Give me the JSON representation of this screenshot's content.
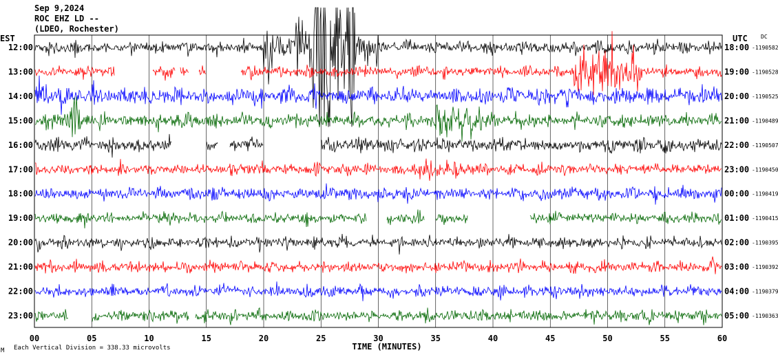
{
  "header": {
    "date": "Sep 9,2024",
    "station": "ROC EHZ LD --",
    "network": "(LDEO, Rochester)"
  },
  "chart_data": {
    "type": "line",
    "left_axis_label": "EST",
    "right_axis_label": "UTC",
    "dc_label": "DC",
    "xlabel": "TIME (MINUTES)",
    "x_ticks": [
      "00",
      "05",
      "10",
      "15",
      "20",
      "25",
      "30",
      "35",
      "40",
      "45",
      "50",
      "55",
      "60"
    ],
    "xlim": [
      0,
      60
    ],
    "grid": true,
    "footer_note": "Each Vertical Division = 338.33 microvolts",
    "corner_mark": "M",
    "trace_colors": [
      "#000000",
      "#ff0000",
      "#0000ff",
      "#006600"
    ],
    "series": [
      {
        "est": "12:00",
        "utc": "18:00",
        "dc": "-1190582",
        "color": "#000000",
        "amp": 1.0,
        "gaps": [],
        "bursts": [
          [
            20,
            30,
            3.4
          ],
          [
            24,
            28,
            4.5
          ]
        ]
      },
      {
        "est": "13:00",
        "utc": "19:00",
        "dc": "-1190528",
        "color": "#ff0000",
        "amp": 0.9,
        "gaps": [
          [
            7,
            10.3
          ],
          [
            12.3,
            12.7
          ],
          [
            13.5,
            14.3
          ],
          [
            15,
            18
          ]
        ],
        "bursts": [
          [
            47,
            53,
            4.5
          ]
        ]
      },
      {
        "est": "14:00",
        "utc": "20:00",
        "dc": "-1190525",
        "color": "#0000ff",
        "amp": 1.4,
        "gaps": [],
        "bursts": [
          [
            0,
            3,
            1.6
          ],
          [
            57,
            60,
            1.4
          ]
        ]
      },
      {
        "est": "15:00",
        "utc": "21:00",
        "dc": "-1190489",
        "color": "#006600",
        "amp": 1.1,
        "gaps": [],
        "bursts": [
          [
            2,
            4,
            2.2
          ],
          [
            35,
            39,
            2.6
          ]
        ]
      },
      {
        "est": "16:00",
        "utc": "22:00",
        "dc": "-1190507",
        "color": "#000000",
        "amp": 1.1,
        "gaps": [
          [
            12,
            15
          ],
          [
            16,
            17
          ],
          [
            20,
            25
          ]
        ],
        "bursts": []
      },
      {
        "est": "17:00",
        "utc": "23:00",
        "dc": "-1190450",
        "color": "#ff0000",
        "amp": 0.9,
        "gaps": [],
        "bursts": [
          [
            33,
            37,
            2.0
          ]
        ]
      },
      {
        "est": "18:00",
        "utc": "00:00",
        "dc": "-1190419",
        "color": "#0000ff",
        "amp": 1.0,
        "gaps": [],
        "bursts": []
      },
      {
        "est": "19:00",
        "utc": "01:00",
        "dc": "-1190415",
        "color": "#006600",
        "amp": 0.9,
        "gaps": [
          [
            29,
            30.7
          ],
          [
            34,
            35
          ],
          [
            37.8,
            43.2
          ]
        ],
        "bursts": []
      },
      {
        "est": "20:00",
        "utc": "02:00",
        "dc": "-1190395",
        "color": "#000000",
        "amp": 0.9,
        "gaps": [],
        "bursts": []
      },
      {
        "est": "21:00",
        "utc": "03:00",
        "dc": "-1190392",
        "color": "#ff0000",
        "amp": 0.9,
        "gaps": [],
        "bursts": []
      },
      {
        "est": "22:00",
        "utc": "04:00",
        "dc": "-1190379",
        "color": "#0000ff",
        "amp": 0.9,
        "gaps": [],
        "bursts": []
      },
      {
        "est": "23:00",
        "utc": "05:00",
        "dc": "-1190363",
        "color": "#006600",
        "amp": 0.9,
        "gaps": [
          [
            3,
            5
          ],
          [
            13.5,
            14
          ]
        ],
        "bursts": []
      }
    ]
  }
}
